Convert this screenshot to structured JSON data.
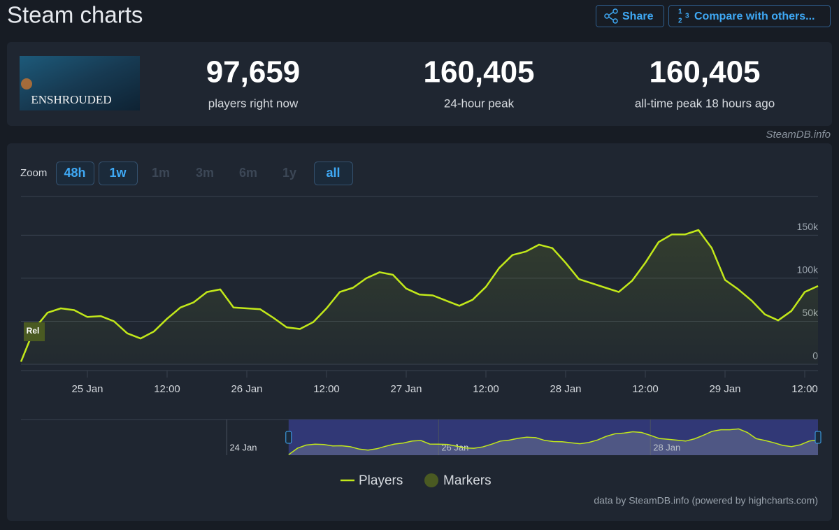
{
  "header": {
    "title": "Steam charts",
    "buttons": [
      "Share",
      "Compare with others..."
    ]
  },
  "game": {
    "name": "ENSHROUDED"
  },
  "stats": [
    {
      "value": "97,659",
      "label": "players right now"
    },
    {
      "value": "160,405",
      "label": "24-hour peak"
    },
    {
      "value": "160,405",
      "label": "all-time peak 18 hours ago"
    }
  ],
  "source": "SteamDB.info",
  "zoom": {
    "label": "Zoom",
    "buttons": [
      "48h",
      "1w",
      "1m",
      "3m",
      "6m",
      "1y",
      "all"
    ]
  },
  "credit": "data by SteamDB.info (powered by highcharts.com)",
  "chart_data": {
    "type": "line",
    "x": [
      "24 Jan 14:00",
      "24 Jan 16:00",
      "24 Jan 18:00",
      "24 Jan 20:00",
      "24 Jan 22:00",
      "25 Jan 00:00",
      "25 Jan 02:00",
      "25 Jan 04:00",
      "25 Jan 06:00",
      "25 Jan 08:00",
      "25 Jan 10:00",
      "25 Jan 12:00",
      "25 Jan 14:00",
      "25 Jan 16:00",
      "25 Jan 18:00",
      "25 Jan 20:00",
      "25 Jan 22:00",
      "26 Jan 00:00",
      "26 Jan 02:00",
      "26 Jan 04:00",
      "26 Jan 06:00",
      "26 Jan 08:00",
      "26 Jan 10:00",
      "26 Jan 12:00",
      "26 Jan 14:00",
      "26 Jan 16:00",
      "26 Jan 18:00",
      "26 Jan 20:00",
      "26 Jan 22:00",
      "27 Jan 00:00",
      "27 Jan 02:00",
      "27 Jan 04:00",
      "27 Jan 06:00",
      "27 Jan 08:00",
      "27 Jan 10:00",
      "27 Jan 12:00",
      "27 Jan 14:00",
      "27 Jan 16:00",
      "27 Jan 18:00",
      "27 Jan 20:00",
      "27 Jan 22:00",
      "28 Jan 00:00",
      "28 Jan 02:00",
      "28 Jan 04:00",
      "28 Jan 06:00",
      "28 Jan 08:00",
      "28 Jan 10:00",
      "28 Jan 12:00",
      "28 Jan 14:00",
      "28 Jan 16:00",
      "28 Jan 18:00",
      "28 Jan 20:00",
      "28 Jan 22:00",
      "29 Jan 00:00",
      "29 Jan 02:00",
      "29 Jan 04:00",
      "29 Jan 06:00",
      "29 Jan 08:00",
      "29 Jan 10:00",
      "29 Jan 12:00",
      "29 Jan 14:00"
    ],
    "series": [
      {
        "name": "Players",
        "color": "#c2e81a",
        "values": [
          3000,
          41000,
          60000,
          65000,
          63000,
          55000,
          56000,
          50000,
          36000,
          30000,
          38000,
          53000,
          66000,
          72000,
          84000,
          87000,
          66000,
          65000,
          64000,
          54000,
          43000,
          41000,
          49000,
          65000,
          84000,
          89000,
          100000,
          107000,
          104000,
          88000,
          81000,
          80000,
          74000,
          68000,
          75000,
          90000,
          112000,
          127000,
          131000,
          139000,
          135000,
          118000,
          99000,
          94000,
          89000,
          84000,
          97000,
          118000,
          142000,
          151000,
          151000,
          156000,
          135000,
          98000,
          87000,
          74000,
          58000,
          51000,
          62000,
          84000,
          91000
        ]
      },
      {
        "name": "Markers",
        "color": "#4a5a22",
        "x": [
          "24 Jan 16:00"
        ],
        "labels": [
          "Rel"
        ]
      }
    ],
    "xlim": [
      "24 Jan 14:00",
      "29 Jan 14:00"
    ],
    "xticks": [
      {
        "value": "25 Jan 00:00",
        "label": "25 Jan"
      },
      {
        "value": "25 Jan 12:00",
        "label": "12:00"
      },
      {
        "value": "26 Jan 00:00",
        "label": "26 Jan"
      },
      {
        "value": "26 Jan 12:00",
        "label": "12:00"
      },
      {
        "value": "27 Jan 00:00",
        "label": "27 Jan"
      },
      {
        "value": "27 Jan 12:00",
        "label": "12:00"
      },
      {
        "value": "28 Jan 00:00",
        "label": "28 Jan"
      },
      {
        "value": "28 Jan 12:00",
        "label": "12:00"
      },
      {
        "value": "29 Jan 00:00",
        "label": "29 Jan"
      },
      {
        "value": "29 Jan 12:00",
        "label": "12:00"
      }
    ],
    "ylim": [
      0,
      195000
    ],
    "yticks": [
      0,
      {
        "value": 50000,
        "label": "50k"
      },
      {
        "value": 100000,
        "label": "100k"
      },
      {
        "value": 150000,
        "label": "150k"
      }
    ],
    "grid": true,
    "navigator": {
      "xlim": [
        "22 Jan 01:20",
        "29 Jan 14:00"
      ],
      "xticks": [
        {
          "value": "24 Jan 00:00",
          "label": "24 Jan"
        },
        {
          "value": "26 Jan 00:00",
          "label": "26 Jan"
        },
        {
          "value": "28 Jan 00:00",
          "label": "28 Jan"
        }
      ]
    }
  }
}
